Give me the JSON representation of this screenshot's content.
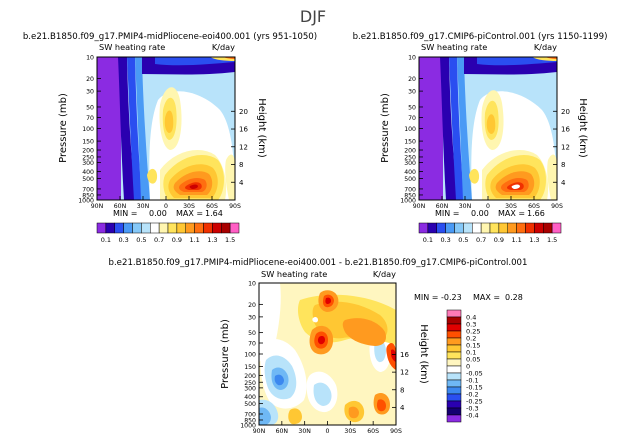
{
  "figure": {
    "title": "DJF"
  },
  "chart_data": [
    {
      "type": "heatmap",
      "title": "b.e21.B1850.f09_g17.PMIP4-midPliocene-eoi400.001 (yrs 951-1050)",
      "subtitle_left": "SW heating rate",
      "subtitle_right": "K/day",
      "xlabel": "",
      "ylabel": "Pressure (mb)",
      "ylabel_right": "Height (km)",
      "x_ticks": [
        "90N",
        "60N",
        "30N",
        "0",
        "30S",
        "60S",
        "90S"
      ],
      "y_ticks": [
        "10",
        "20",
        "30",
        "50",
        "70",
        "100",
        "150",
        "200",
        "250",
        "300",
        "400",
        "500",
        "700",
        "850",
        "1000"
      ],
      "y_ticks_right": [
        "20",
        "16",
        "12",
        "8",
        "4"
      ],
      "stats": {
        "min_label": "MIN =",
        "min": "0.00",
        "max_label": "MAX =",
        "max": "1.64"
      }
    },
    {
      "type": "heatmap",
      "title": "b.e21.B1850.f09_g17.CMIP6-piControl.001 (yrs 1150-1199)",
      "subtitle_left": "SW heating rate",
      "subtitle_right": "K/day",
      "xlabel": "",
      "ylabel": "Pressure (mb)",
      "ylabel_right": "Height (km)",
      "x_ticks": [
        "90N",
        "60N",
        "30N",
        "0",
        "30S",
        "60S",
        "90S"
      ],
      "y_ticks": [
        "10",
        "20",
        "30",
        "50",
        "70",
        "100",
        "150",
        "200",
        "250",
        "300",
        "400",
        "500",
        "700",
        "850",
        "1000"
      ],
      "y_ticks_right": [
        "20",
        "16",
        "12",
        "8",
        "4"
      ],
      "stats": {
        "min_label": "MIN =",
        "min": "0.00",
        "max_label": "MAX =",
        "max": "1.66"
      }
    },
    {
      "type": "heatmap",
      "title": "b.e21.B1850.f09_g17.PMIP4-midPliocene-eoi400.001 - b.e21.B1850.f09_g17.CMIP6-piControl.001",
      "subtitle_left": "SW heating rate",
      "subtitle_right": "K/day",
      "xlabel": "",
      "ylabel": "Pressure (mb)",
      "ylabel_right": "Height (km)",
      "x_ticks": [
        "90N",
        "60N",
        "30N",
        "0",
        "30S",
        "60S",
        "90S"
      ],
      "y_ticks": [
        "10",
        "20",
        "30",
        "50",
        "70",
        "100",
        "150",
        "200",
        "250",
        "300",
        "400",
        "500",
        "700",
        "850",
        "1000"
      ],
      "y_ticks_right": [
        "16",
        "12",
        "8",
        "4"
      ],
      "stats": {
        "min_label": "MIN =",
        "min": "-0.23",
        "max_label": "MAX =",
        "max": "0.28"
      }
    }
  ],
  "colorbars": {
    "absolute": {
      "labels": [
        "0.1",
        "0.3",
        "0.5",
        "0.7",
        "0.9",
        "1.1",
        "1.3",
        "1.5"
      ],
      "colors": [
        "#8b2be2",
        "#2a00b0",
        "#2a4ef0",
        "#4a9af5",
        "#85c8f8",
        "#b8e3fa",
        "#ffffff",
        "#fff6b0",
        "#ffe45c",
        "#ffc733",
        "#ff9a1f",
        "#ff6e10",
        "#f03000",
        "#cc0000",
        "#a80000",
        "#ff5fc5"
      ]
    },
    "difference": {
      "labels": [
        "0.4",
        "0.3",
        "0.25",
        "0.2",
        "0.15",
        "0.1",
        "0.05",
        "0",
        "-0.05",
        "-0.1",
        "-0.15",
        "-0.2",
        "-0.25",
        "-0.3",
        "-0.4"
      ],
      "colors": [
        "#ff7ab8",
        "#a80000",
        "#e00000",
        "#ff5000",
        "#ff9a1f",
        "#ffc733",
        "#ffe45c",
        "#fff6c0",
        "#ffffff",
        "#b8e3fa",
        "#6fb8f5",
        "#3c88ef",
        "#2a4ef0",
        "#2a00b0",
        "#150070",
        "#8b2be2"
      ]
    }
  }
}
